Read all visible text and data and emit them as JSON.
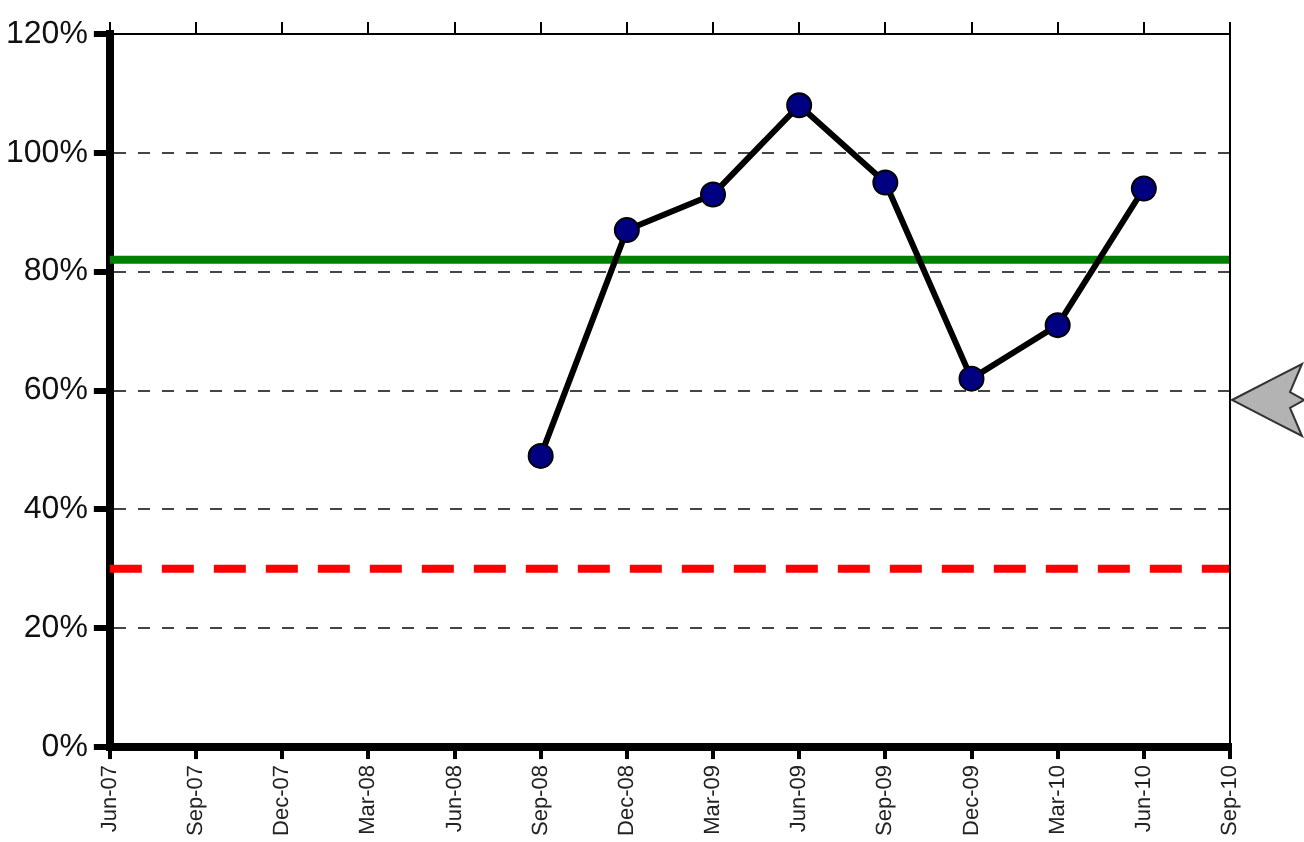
{
  "chart_data": {
    "type": "line",
    "categories": [
      "Jun-07",
      "Sep-07",
      "Dec-07",
      "Mar-08",
      "Jun-08",
      "Sep-08",
      "Dec-08",
      "Mar-09",
      "Jun-09",
      "Sep-09",
      "Dec-09",
      "Mar-10",
      "Jun-10",
      "Sep-10"
    ],
    "series": [
      {
        "color": "#000080",
        "values": [
          null,
          null,
          null,
          null,
          null,
          49,
          87,
          93,
          108,
          95,
          62,
          71,
          94,
          null
        ]
      }
    ],
    "ylim": [
      0,
      120
    ],
    "yticks": [
      {
        "value": 0,
        "label": "0%"
      },
      {
        "value": 20,
        "label": "20%"
      },
      {
        "value": 40,
        "label": "40%"
      },
      {
        "value": 60,
        "label": "60%"
      },
      {
        "value": 80,
        "label": "80%"
      },
      {
        "value": 100,
        "label": "100%"
      },
      {
        "value": 120,
        "label": "120%"
      }
    ],
    "ref_lines": [
      {
        "axis": "y",
        "value": 82,
        "color": "#008000",
        "line_style": "solid"
      },
      {
        "axis": "y",
        "value": 30,
        "color": "#ff0000",
        "line_style": "dashed"
      }
    ],
    "grid": "y",
    "legend": false,
    "marker": "circle",
    "line_style": "solid"
  }
}
